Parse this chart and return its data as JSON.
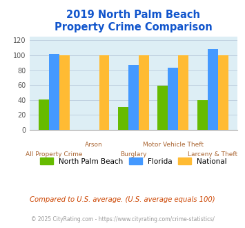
{
  "title": "2019 North Palm Beach\nProperty Crime Comparison",
  "categories": [
    "All Property Crime",
    "Arson",
    "Burglary",
    "Motor Vehicle Theft",
    "Larceny & Theft"
  ],
  "npb_values": [
    41,
    0,
    31,
    59,
    40
  ],
  "florida_values": [
    102,
    0,
    87,
    83,
    108
  ],
  "national_values": [
    100,
    100,
    100,
    100,
    100
  ],
  "npb_color": "#66bb00",
  "florida_color": "#4499ff",
  "national_color": "#ffbb33",
  "bg_color": "#ddeef5",
  "title_color": "#1155cc",
  "xlabel_color": "#aa6633",
  "legend_label_npb": "North Palm Beach",
  "legend_label_fl": "Florida",
  "legend_label_nat": "National",
  "footnote1": "Compared to U.S. average. (U.S. average equals 100)",
  "footnote2": "© 2025 CityRating.com - https://www.cityrating.com/crime-statistics/",
  "ylim": [
    0,
    125
  ],
  "yticks": [
    0,
    20,
    40,
    60,
    80,
    100,
    120
  ]
}
